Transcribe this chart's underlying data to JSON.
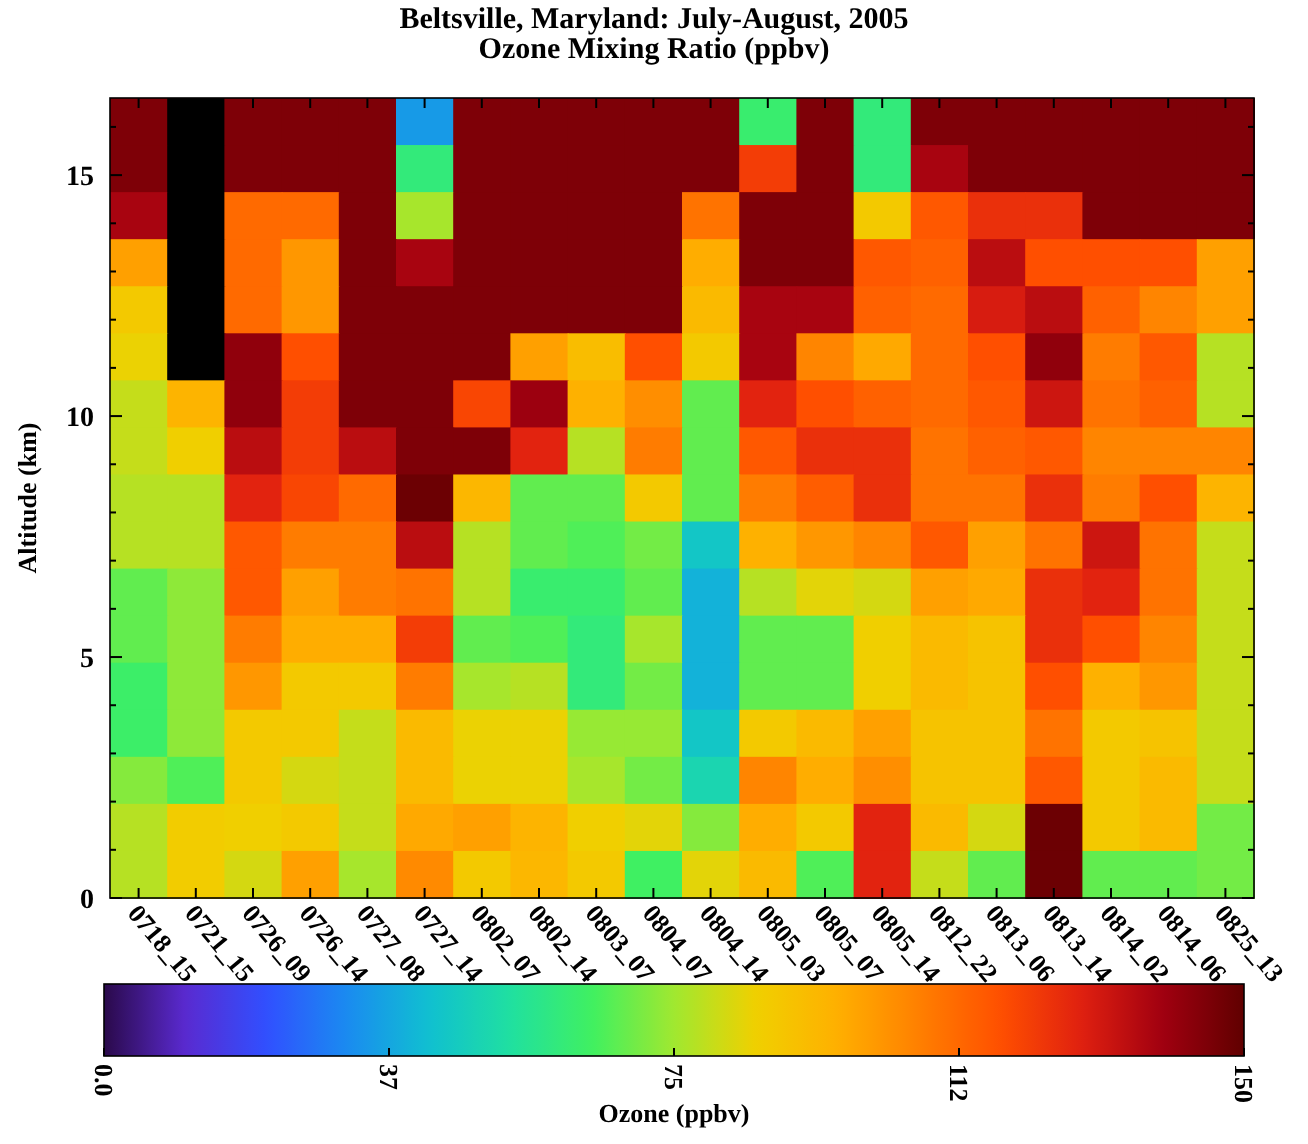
{
  "chart_data": {
    "type": "heatmap",
    "title": "Beltsville, Maryland: July-August, 2005",
    "subtitle": "Ozone Mixing Ratio (ppbv)",
    "ylabel": "Altitude (km)",
    "clabel": "Ozone (ppbv)",
    "categories": [
      "0718_15",
      "0721_15",
      "0726_09",
      "0726_14",
      "0727_08",
      "0727_14",
      "0802_07",
      "0802_14",
      "0803_07",
      "0804_07",
      "0804_14",
      "0805_03",
      "0805_07",
      "0805_14",
      "0812_22",
      "0813_06",
      "0813_14",
      "0814_02",
      "0814_06",
      "0825_13"
    ],
    "ylim": [
      0,
      16.6
    ],
    "yticks": [
      0,
      {
        "value": 1,
        "label": null
      },
      {
        "value": 2,
        "label": null
      },
      {
        "value": 3,
        "label": null
      },
      {
        "value": 4,
        "label": null
      },
      5,
      {
        "value": 6,
        "label": null
      },
      {
        "value": 7,
        "label": null
      },
      {
        "value": 8,
        "label": null
      },
      {
        "value": 9,
        "label": null
      },
      10,
      {
        "value": 11,
        "label": null
      },
      {
        "value": 12,
        "label": null
      },
      {
        "value": 13,
        "label": null
      },
      {
        "value": 14,
        "label": null
      },
      15,
      {
        "value": 16,
        "label": null
      }
    ],
    "clim": [
      0,
      150
    ],
    "cticks": [
      {
        "value": 0,
        "label": "0.0"
      },
      {
        "value": 37.5,
        "label": "37"
      },
      75,
      {
        "value": 112.5,
        "label": "112"
      },
      150
    ],
    "cells": [
      [
        145,
        null,
        145,
        145,
        145,
        35,
        145,
        145,
        145,
        145,
        145,
        62,
        145,
        60,
        145,
        145,
        145,
        145,
        145,
        145
      ],
      [
        145,
        null,
        145,
        145,
        145,
        60,
        145,
        145,
        145,
        145,
        145,
        122,
        145,
        60,
        138,
        145,
        145,
        145,
        145,
        145
      ],
      [
        138,
        null,
        112,
        112,
        145,
        76,
        145,
        145,
        145,
        145,
        110,
        145,
        145,
        88,
        116,
        125,
        125,
        145,
        145,
        145
      ],
      [
        100,
        null,
        112,
        102,
        145,
        138,
        145,
        145,
        145,
        145,
        97,
        145,
        145,
        116,
        114,
        135,
        118,
        118,
        118,
        100
      ],
      [
        88,
        null,
        112,
        102,
        145,
        145,
        145,
        145,
        145,
        145,
        93,
        138,
        138,
        114,
        112,
        130,
        135,
        114,
        106,
        100
      ],
      [
        85,
        null,
        142,
        118,
        145,
        145,
        145,
        100,
        92,
        118,
        88,
        138,
        106,
        98,
        112,
        118,
        142,
        108,
        116,
        78
      ],
      [
        80,
        95,
        142,
        122,
        145,
        145,
        120,
        140,
        96,
        104,
        68,
        128,
        118,
        114,
        112,
        116,
        132,
        110,
        114,
        78
      ],
      [
        80,
        86,
        135,
        122,
        135,
        145,
        145,
        128,
        78,
        108,
        68,
        116,
        125,
        125,
        110,
        114,
        116,
        106,
        106,
        106
      ],
      [
        78,
        78,
        128,
        120,
        112,
        148,
        94,
        68,
        68,
        88,
        68,
        108,
        115,
        125,
        110,
        110,
        125,
        108,
        118,
        95
      ],
      [
        78,
        78,
        116,
        108,
        108,
        135,
        78,
        68,
        66,
        70,
        45,
        96,
        102,
        106,
        116,
        100,
        110,
        132,
        110,
        80
      ],
      [
        68,
        73,
        116,
        100,
        108,
        110,
        78,
        62,
        62,
        68,
        40,
        78,
        84,
        82,
        100,
        98,
        125,
        128,
        110,
        80
      ],
      [
        68,
        73,
        108,
        97,
        97,
        122,
        68,
        66,
        60,
        76,
        40,
        68,
        68,
        86,
        93,
        90,
        125,
        118,
        106,
        80
      ],
      [
        63,
        73,
        102,
        88,
        88,
        108,
        76,
        78,
        60,
        70,
        40,
        68,
        68,
        86,
        93,
        90,
        118,
        96,
        102,
        80
      ],
      [
        63,
        73,
        88,
        88,
        80,
        93,
        85,
        85,
        74,
        74,
        45,
        88,
        93,
        100,
        90,
        90,
        110,
        88,
        90,
        80
      ],
      [
        72,
        66,
        88,
        82,
        80,
        93,
        85,
        85,
        76,
        70,
        50,
        106,
        97,
        104,
        90,
        90,
        116,
        88,
        93,
        80
      ],
      [
        78,
        87,
        86,
        88,
        80,
        98,
        100,
        95,
        86,
        84,
        72,
        97,
        88,
        128,
        93,
        82,
        148,
        88,
        93,
        70
      ],
      [
        78,
        87,
        82,
        100,
        76,
        105,
        88,
        94,
        88,
        64,
        84,
        93,
        66,
        128,
        80,
        68,
        148,
        68,
        68,
        70
      ]
    ]
  }
}
